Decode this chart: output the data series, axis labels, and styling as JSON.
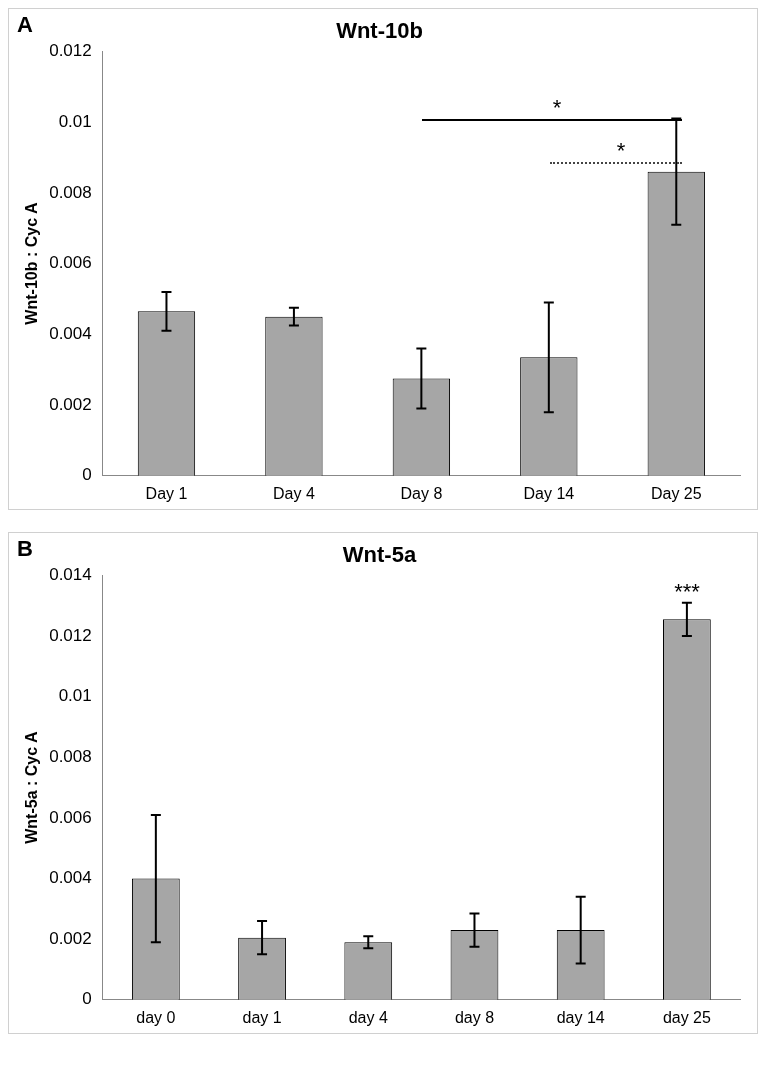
{
  "chart_data": [
    {
      "type": "bar",
      "title": "Wnt-10b",
      "ylabel": "Wnt-10b : Cyc A",
      "annotations": [
        "A",
        "*",
        "*"
      ],
      "categories": [
        "Day 1",
        "Day 4",
        "Day 8",
        "Day 14",
        "Day 25"
      ],
      "values": [
        0.00465,
        0.0045,
        0.00275,
        0.00335,
        0.0086
      ],
      "errors": [
        0.00055,
        0.00025,
        0.00085,
        0.00155,
        0.0015
      ],
      "color": "#a6a6a6",
      "ylim": [
        0,
        0.012
      ],
      "yticks": [
        0,
        0.002,
        0.004,
        0.006,
        0.008,
        0.01,
        0.012
      ],
      "grid": false,
      "legend": false
    },
    {
      "type": "bar",
      "title": "Wnt-5a",
      "ylabel": "Wnt-5a : Cyc A",
      "annotations": [
        "B",
        "***"
      ],
      "categories": [
        "day 0",
        "day 1",
        "day 4",
        "day 8",
        "day 14",
        "day 25"
      ],
      "values": [
        0.004,
        0.00205,
        0.0019,
        0.0023,
        0.0023,
        0.01255
      ],
      "errors": [
        0.0021,
        0.00055,
        0.0002,
        0.00055,
        0.0011,
        0.00055
      ],
      "color": "#a6a6a6",
      "ylim": [
        0,
        0.014
      ],
      "yticks": [
        0,
        0.002,
        0.004,
        0.006,
        0.008,
        0.01,
        0.012,
        0.014
      ],
      "grid": false,
      "legend": false
    }
  ]
}
